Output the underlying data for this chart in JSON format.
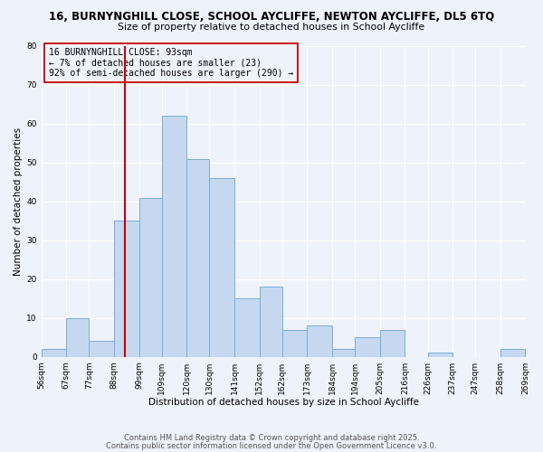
{
  "title1": "16, BURNYNGHILL CLOSE, SCHOOL AYCLIFFE, NEWTON AYCLIFFE, DL5 6TQ",
  "title2": "Size of property relative to detached houses in School Aycliffe",
  "xlabel": "Distribution of detached houses by size in School Aycliffe",
  "ylabel": "Number of detached properties",
  "bin_edges": [
    56,
    67,
    77,
    88,
    99,
    109,
    120,
    130,
    141,
    152,
    162,
    173,
    184,
    194,
    205,
    216,
    226,
    237,
    247,
    258,
    269
  ],
  "bin_counts": [
    2,
    10,
    4,
    35,
    41,
    62,
    51,
    46,
    15,
    18,
    7,
    8,
    2,
    5,
    7,
    0,
    1,
    0,
    0,
    2
  ],
  "bar_color": "#c5d8f0",
  "bar_edge_color": "#7aadd4",
  "vline_x": 93,
  "vline_color": "#cc0000",
  "annotation_text": "16 BURNYNGHILL CLOSE: 93sqm\n← 7% of detached houses are smaller (23)\n92% of semi-detached houses are larger (290) →",
  "ylim": [
    0,
    80
  ],
  "yticks": [
    0,
    10,
    20,
    30,
    40,
    50,
    60,
    70,
    80
  ],
  "tick_labels": [
    "56sqm",
    "67sqm",
    "77sqm",
    "88sqm",
    "99sqm",
    "109sqm",
    "120sqm",
    "130sqm",
    "141sqm",
    "152sqm",
    "162sqm",
    "173sqm",
    "184sqm",
    "194sqm",
    "205sqm",
    "216sqm",
    "226sqm",
    "237sqm",
    "247sqm",
    "258sqm",
    "269sqm"
  ],
  "footer1": "Contains HM Land Registry data © Crown copyright and database right 2025.",
  "footer2": "Contains public sector information licensed under the Open Government Licence v3.0.",
  "background_color": "#eef2fa",
  "grid_color": "#ffffff",
  "title_fontsize": 8.5,
  "subtitle_fontsize": 7.8,
  "axis_label_fontsize": 7.5,
  "tick_fontsize": 6.5,
  "annotation_fontsize": 7.0,
  "footer_fontsize": 6.0
}
